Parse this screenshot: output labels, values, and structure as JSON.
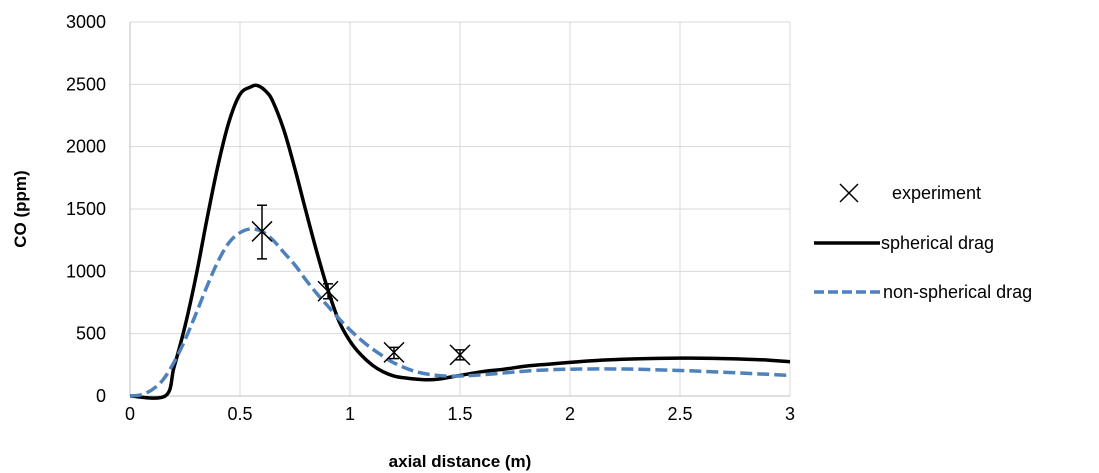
{
  "chart_data": {
    "type": "line",
    "title": "",
    "xlabel": "axial distance (m)",
    "ylabel": "CO (ppm)",
    "xlim": [
      0,
      3
    ],
    "ylim": [
      0,
      3000
    ],
    "x_ticks": [
      "0",
      "0.5",
      "1",
      "1.5",
      "2",
      "2.5",
      "3"
    ],
    "y_ticks": [
      "0",
      "500",
      "1000",
      "1500",
      "2000",
      "2500",
      "3000"
    ],
    "grid": "vertical and horizontal major gridlines",
    "legend_position": "right",
    "series": [
      {
        "name": "experiment",
        "style": "markers",
        "marker": "x",
        "color": "#000000",
        "x": [
          0.6,
          0.9,
          1.2,
          1.5
        ],
        "y": [
          1320,
          840,
          350,
          330
        ],
        "error_low": [
          1100,
          780,
          300,
          290
        ],
        "error_high": [
          1530,
          900,
          390,
          370
        ]
      },
      {
        "name": "spherical drag",
        "style": "solid",
        "color": "#000000",
        "x": [
          0,
          0.16,
          0.2,
          0.25,
          0.3,
          0.35,
          0.4,
          0.45,
          0.5,
          0.55,
          0.58,
          0.62,
          0.65,
          0.7,
          0.75,
          0.8,
          0.85,
          0.9,
          0.95,
          1.0,
          1.05,
          1.1,
          1.15,
          1.2,
          1.25,
          1.3,
          1.35,
          1.4,
          1.5,
          1.6,
          1.7,
          1.8,
          1.9,
          2.0,
          2.1,
          2.2,
          2.3,
          2.4,
          2.5,
          2.6,
          2.7,
          2.8,
          2.9,
          3.0
        ],
        "y": [
          0,
          0,
          230,
          560,
          960,
          1420,
          1850,
          2200,
          2420,
          2480,
          2490,
          2440,
          2360,
          2130,
          1820,
          1480,
          1150,
          850,
          600,
          440,
          330,
          250,
          195,
          160,
          145,
          135,
          130,
          135,
          165,
          195,
          215,
          240,
          255,
          270,
          283,
          292,
          298,
          302,
          304,
          303,
          300,
          295,
          288,
          275
        ]
      },
      {
        "name": "non-spherical drag",
        "style": "dashed",
        "color": "#4f81bd",
        "x": [
          0,
          0.05,
          0.1,
          0.15,
          0.2,
          0.25,
          0.3,
          0.35,
          0.4,
          0.45,
          0.5,
          0.55,
          0.6,
          0.65,
          0.7,
          0.75,
          0.8,
          0.85,
          0.9,
          0.95,
          1.0,
          1.05,
          1.1,
          1.15,
          1.2,
          1.3,
          1.4,
          1.5,
          1.6,
          1.7,
          1.8,
          1.9,
          2.0,
          2.1,
          2.2,
          2.3,
          2.4,
          2.5,
          2.6,
          2.7,
          2.8,
          2.9,
          3.0
        ],
        "y": [
          0,
          10,
          50,
          130,
          270,
          450,
          660,
          880,
          1080,
          1230,
          1310,
          1340,
          1320,
          1250,
          1150,
          1050,
          930,
          820,
          720,
          620,
          530,
          450,
          380,
          320,
          265,
          195,
          165,
          160,
          170,
          185,
          200,
          210,
          215,
          217,
          217,
          215,
          210,
          205,
          198,
          190,
          182,
          174,
          165
        ]
      }
    ]
  }
}
